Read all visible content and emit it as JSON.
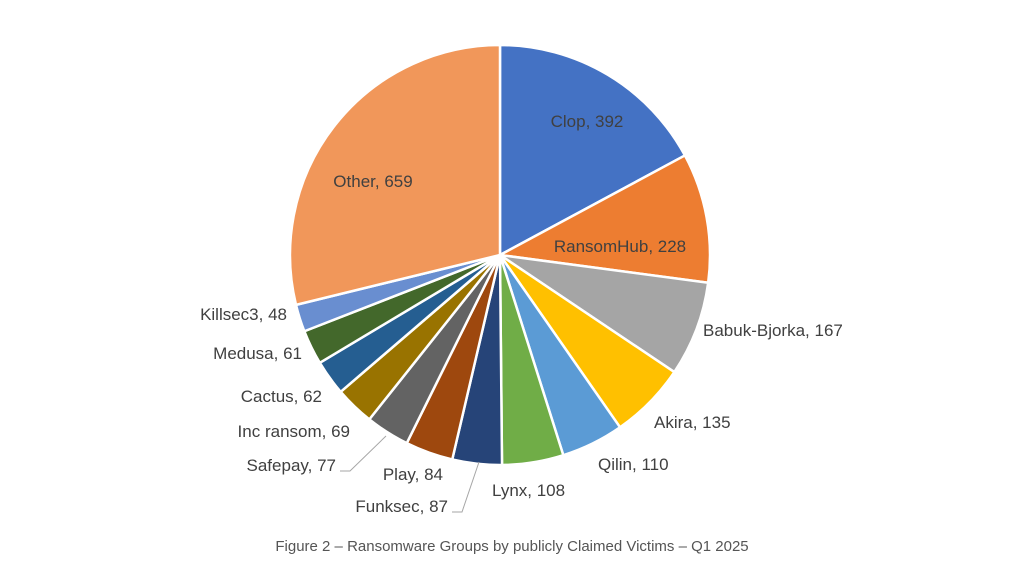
{
  "caption": "Figure 2 – Ransomware Groups by publicly Claimed Victims – Q1 2025",
  "chart_data": {
    "type": "pie",
    "title": "",
    "start": "12 o'clock, clockwise",
    "slices": [
      {
        "name": "Clop",
        "value": 392,
        "label": "Clop, 392",
        "color": "#4472C4",
        "label_inside": true
      },
      {
        "name": "RansomHub",
        "value": 228,
        "label": "RansomHub, 228",
        "color": "#ED7D31",
        "label_inside": true
      },
      {
        "name": "Babuk-Bjorka",
        "value": 167,
        "label": "Babuk-Bjorka, 167",
        "color": "#A5A5A5",
        "label_inside": false
      },
      {
        "name": "Akira",
        "value": 135,
        "label": "Akira, 135",
        "color": "#FFC000",
        "label_inside": false
      },
      {
        "name": "Qilin",
        "value": 110,
        "label": "Qilin, 110",
        "color": "#5B9BD5",
        "label_inside": false
      },
      {
        "name": "Lynx",
        "value": 108,
        "label": "Lynx, 108",
        "color": "#70AD47",
        "label_inside": false
      },
      {
        "name": "Funksec",
        "value": 87,
        "label": "Funksec, 87",
        "color": "#264478",
        "label_inside": false
      },
      {
        "name": "Play",
        "value": 84,
        "label": "Play, 84",
        "color": "#9E480E",
        "label_inside": false
      },
      {
        "name": "Safepay",
        "value": 77,
        "label": "Safepay, 77",
        "color": "#636363",
        "label_inside": false
      },
      {
        "name": "Inc ransom",
        "value": 69,
        "label": "Inc ransom, 69",
        "color": "#997300",
        "label_inside": false
      },
      {
        "name": "Cactus",
        "value": 62,
        "label": "Cactus, 62",
        "color": "#255E91",
        "label_inside": false
      },
      {
        "name": "Medusa",
        "value": 61,
        "label": "Medusa, 61",
        "color": "#43682B",
        "label_inside": false
      },
      {
        "name": "Killsec3",
        "value": 48,
        "label": "Killsec3, 48",
        "color": "#698ED0",
        "label_inside": false
      },
      {
        "name": "Other",
        "value": 659,
        "label": "Other, 659",
        "color": "#F1975A",
        "label_inside": true
      }
    ]
  }
}
